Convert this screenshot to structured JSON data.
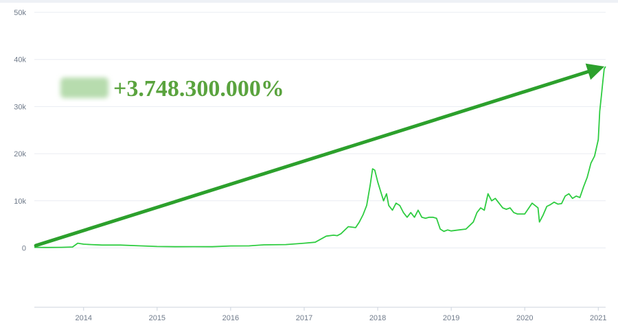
{
  "chart_data": {
    "type": "line",
    "title": "",
    "xlabel": "",
    "ylabel": "",
    "y_ticks": [
      {
        "value": 0,
        "label": "0"
      },
      {
        "value": 10000,
        "label": "10k"
      },
      {
        "value": 20000,
        "label": "20k"
      },
      {
        "value": 30000,
        "label": "30k"
      },
      {
        "value": 40000,
        "label": "40k"
      },
      {
        "value": 50000,
        "label": "50k"
      }
    ],
    "x_ticks": [
      {
        "value": 2014,
        "label": "2014"
      },
      {
        "value": 2015,
        "label": "2015"
      },
      {
        "value": 2016,
        "label": "2016"
      },
      {
        "value": 2017,
        "label": "2017"
      },
      {
        "value": 2018,
        "label": "2018"
      },
      {
        "value": 2019,
        "label": "2019"
      },
      {
        "value": 2020,
        "label": "2020"
      },
      {
        "value": 2021,
        "label": "2021"
      }
    ],
    "xlim": [
      2013.33,
      2021.1
    ],
    "ylim": [
      -12600,
      50000
    ],
    "grid": true,
    "legend": "none",
    "annotation": {
      "label": "+3.748.300.000%",
      "color": "#5aa33e",
      "blurred_prefix": true,
      "arrow": {
        "from": [
          2013.35,
          500
        ],
        "to": [
          2021.05,
          38500
        ],
        "color": "#2ca02c"
      }
    },
    "series": [
      {
        "color": "#2ecc40",
        "x": [
          2013.33,
          2013.5,
          2013.7,
          2013.85,
          2013.92,
          2014.0,
          2014.1,
          2014.25,
          2014.5,
          2014.75,
          2015.0,
          2015.25,
          2015.5,
          2015.75,
          2016.0,
          2016.25,
          2016.45,
          2016.75,
          2017.0,
          2017.15,
          2017.3,
          2017.4,
          2017.45,
          2017.5,
          2017.6,
          2017.7,
          2017.75,
          2017.8,
          2017.85,
          2017.9,
          2017.93,
          2017.96,
          2018.0,
          2018.05,
          2018.08,
          2018.12,
          2018.15,
          2018.2,
          2018.25,
          2018.3,
          2018.35,
          2018.4,
          2018.45,
          2018.5,
          2018.55,
          2018.6,
          2018.65,
          2018.7,
          2018.75,
          2018.8,
          2018.85,
          2018.9,
          2018.95,
          2019.0,
          2019.1,
          2019.2,
          2019.3,
          2019.35,
          2019.4,
          2019.45,
          2019.5,
          2019.55,
          2019.6,
          2019.65,
          2019.7,
          2019.75,
          2019.8,
          2019.85,
          2019.9,
          2020.0,
          2020.1,
          2020.18,
          2020.2,
          2020.25,
          2020.3,
          2020.35,
          2020.4,
          2020.45,
          2020.5,
          2020.55,
          2020.6,
          2020.65,
          2020.7,
          2020.75,
          2020.8,
          2020.85,
          2020.9,
          2020.95,
          2021.0,
          2021.02,
          2021.04,
          2021.06,
          2021.08,
          2021.1
        ],
        "values": [
          120,
          100,
          120,
          200,
          1000,
          800,
          700,
          600,
          600,
          450,
          300,
          250,
          270,
          260,
          420,
          430,
          650,
          700,
          1000,
          1200,
          2500,
          2700,
          2600,
          3000,
          4500,
          4300,
          5500,
          7000,
          9000,
          13500,
          16800,
          16500,
          14000,
          11500,
          10000,
          11500,
          9000,
          8000,
          9500,
          9000,
          7500,
          6500,
          7500,
          6500,
          8000,
          6500,
          6300,
          6500,
          6500,
          6300,
          4000,
          3500,
          3800,
          3600,
          3800,
          4000,
          5500,
          7500,
          8500,
          8000,
          11500,
          10000,
          10500,
          9500,
          8500,
          8200,
          8500,
          7500,
          7200,
          7200,
          9500,
          8500,
          5500,
          7000,
          8800,
          9200,
          9700,
          9300,
          9400,
          11000,
          11500,
          10500,
          11000,
          10700,
          13000,
          15000,
          18000,
          19500,
          23000,
          29000,
          32000,
          35000,
          38000,
          38500
        ]
      }
    ]
  }
}
